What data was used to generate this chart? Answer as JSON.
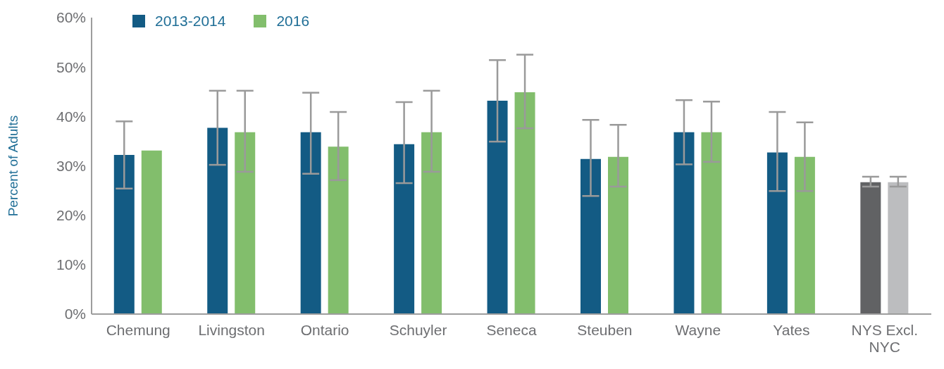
{
  "chart_data": {
    "type": "bar",
    "ylabel": "Percent of Adults",
    "categories": [
      "Chemung",
      "Livingston",
      "Ontario",
      "Schuyler",
      "Seneca",
      "Steuben",
      "Wayne",
      "Yates",
      "NYS Excl. NYC"
    ],
    "series": [
      {
        "name": "2013-2014",
        "color": "#135b84",
        "colors": [
          "#135b84",
          "#135b84",
          "#135b84",
          "#135b84",
          "#135b84",
          "#135b84",
          "#135b84",
          "#135b84",
          "#616264"
        ],
        "values": [
          32.2,
          37.7,
          36.8,
          34.4,
          43.2,
          31.4,
          36.8,
          32.7,
          26.7
        ],
        "errors": [
          [
            25.4,
            39.0
          ],
          [
            30.2,
            45.2
          ],
          [
            28.4,
            44.8
          ],
          [
            26.5,
            42.9
          ],
          [
            34.9,
            51.4
          ],
          [
            23.9,
            39.3
          ],
          [
            30.3,
            43.3
          ],
          [
            24.9,
            40.9
          ],
          [
            25.8,
            27.8
          ]
        ]
      },
      {
        "name": "2016",
        "color": "#82be6c",
        "colors": [
          "#82be6c",
          "#82be6c",
          "#82be6c",
          "#82be6c",
          "#82be6c",
          "#82be6c",
          "#82be6c",
          "#82be6c",
          "#bcbdbf"
        ],
        "values": [
          33.1,
          36.8,
          33.9,
          36.8,
          44.9,
          31.8,
          36.8,
          31.8,
          26.7
        ],
        "errors": [
          null,
          [
            28.8,
            45.2
          ],
          [
            27.1,
            40.9
          ],
          [
            28.8,
            45.2
          ],
          [
            37.6,
            52.5
          ],
          [
            25.8,
            38.3
          ],
          [
            30.8,
            43.0
          ],
          [
            24.9,
            38.8
          ],
          [
            25.8,
            27.8
          ]
        ]
      }
    ],
    "ylim": [
      0,
      60
    ],
    "yticks": [
      {
        "value": 0,
        "label": "0%"
      },
      {
        "value": 10,
        "label": "10%"
      },
      {
        "value": 20,
        "label": "20%"
      },
      {
        "value": 30,
        "label": "30%"
      },
      {
        "value": 40,
        "label": "40%"
      },
      {
        "value": 50,
        "label": "50%"
      },
      {
        "value": 60,
        "label": "60%"
      }
    ],
    "grid": false,
    "legend": "top left"
  }
}
